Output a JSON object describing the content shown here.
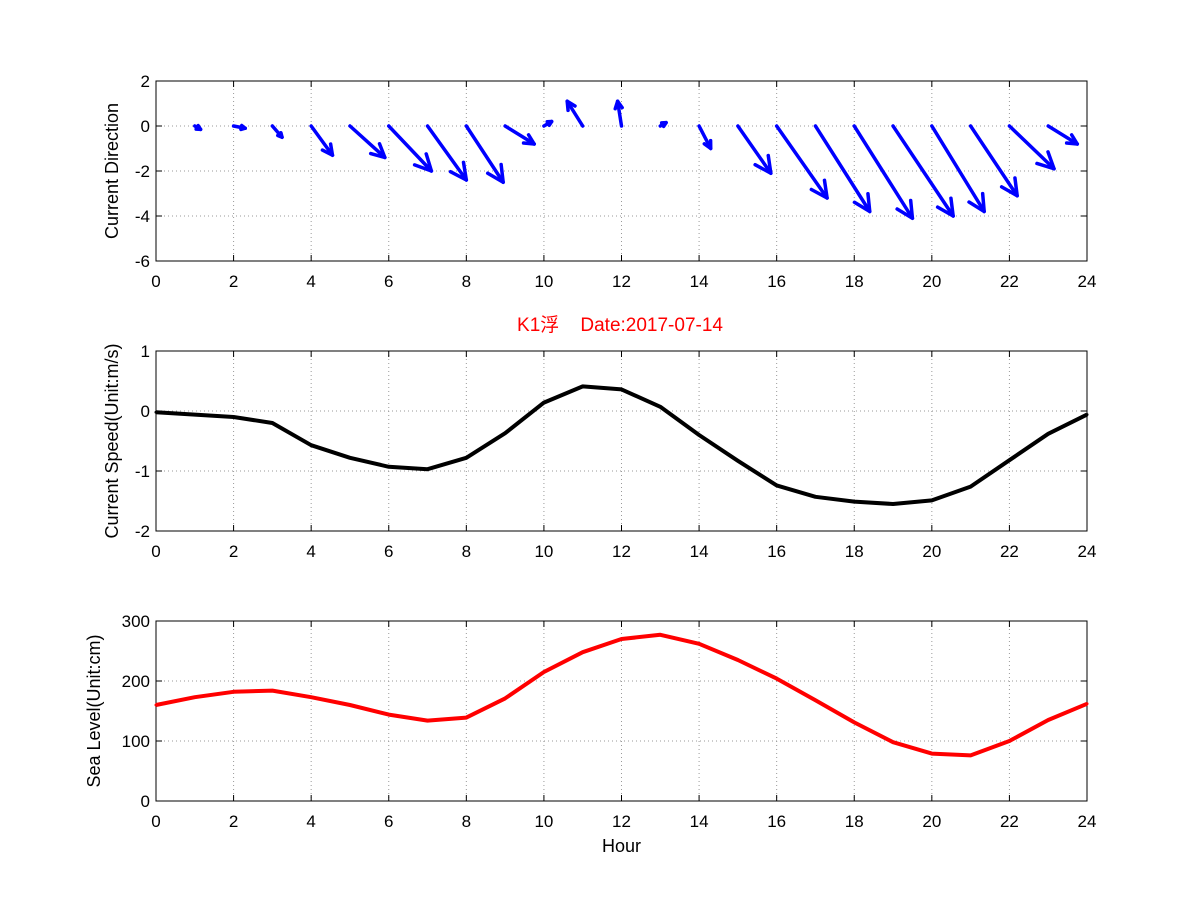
{
  "title": "K1浮    Date:2017-07-14",
  "colors": {
    "arrows": "#0000ff",
    "speed": "#000000",
    "sea_level": "#ff0000",
    "title": "#ff0000"
  },
  "chart_data": [
    {
      "type": "quiver",
      "ylabel": "Current Direction",
      "xlim": [
        0,
        24
      ],
      "ylim": [
        -6,
        2
      ],
      "xticks": [
        0,
        2,
        4,
        6,
        8,
        10,
        12,
        14,
        16,
        18,
        20,
        22,
        24
      ],
      "yticks": [
        2,
        0,
        -2,
        -4,
        -6
      ],
      "grid": true,
      "arrows": [
        {
          "x": 1,
          "u": 0.15,
          "v": -0.15
        },
        {
          "x": 2,
          "u": 0.3,
          "v": -0.1
        },
        {
          "x": 3,
          "u": 0.25,
          "v": -0.5
        },
        {
          "x": 4,
          "u": 0.55,
          "v": -1.3
        },
        {
          "x": 5,
          "u": 0.9,
          "v": -1.4
        },
        {
          "x": 6,
          "u": 1.1,
          "v": -2.0
        },
        {
          "x": 7,
          "u": 1.0,
          "v": -2.4
        },
        {
          "x": 8,
          "u": 0.95,
          "v": -2.5
        },
        {
          "x": 9,
          "u": 0.75,
          "v": -0.8
        },
        {
          "x": 10,
          "u": 0.2,
          "v": 0.2
        },
        {
          "x": 11,
          "u": -0.4,
          "v": 1.1
        },
        {
          "x": 12,
          "u": -0.1,
          "v": 1.1
        },
        {
          "x": 13,
          "u": 0.15,
          "v": 0.15
        },
        {
          "x": 14,
          "u": 0.3,
          "v": -1.0
        },
        {
          "x": 15,
          "u": 0.85,
          "v": -2.1
        },
        {
          "x": 16,
          "u": 1.3,
          "v": -3.2
        },
        {
          "x": 17,
          "u": 1.4,
          "v": -3.8
        },
        {
          "x": 18,
          "u": 1.5,
          "v": -4.1
        },
        {
          "x": 19,
          "u": 1.55,
          "v": -4.0
        },
        {
          "x": 20,
          "u": 1.35,
          "v": -3.8
        },
        {
          "x": 21,
          "u": 1.2,
          "v": -3.1
        },
        {
          "x": 22,
          "u": 1.15,
          "v": -1.9
        },
        {
          "x": 23,
          "u": 0.75,
          "v": -0.8
        }
      ]
    },
    {
      "type": "line",
      "ylabel": "Current Speed(Unit:m/s)",
      "xlim": [
        0,
        24
      ],
      "ylim": [
        -2,
        1
      ],
      "xticks": [
        0,
        2,
        4,
        6,
        8,
        10,
        12,
        14,
        16,
        18,
        20,
        22,
        24
      ],
      "yticks": [
        1,
        0,
        -1,
        -2
      ],
      "grid": true,
      "x": [
        0,
        1,
        2,
        3,
        4,
        5,
        6,
        7,
        8,
        9,
        10,
        11,
        12,
        13,
        14,
        15,
        16,
        17,
        18,
        19,
        20,
        21,
        22,
        23,
        24
      ],
      "y": [
        -0.02,
        -0.06,
        -0.1,
        -0.2,
        -0.57,
        -0.78,
        -0.93,
        -0.97,
        -0.78,
        -0.37,
        0.14,
        0.41,
        0.36,
        0.07,
        -0.4,
        -0.83,
        -1.24,
        -1.43,
        -1.51,
        -1.55,
        -1.49,
        -1.26,
        -0.82,
        -0.38,
        -0.06
      ]
    },
    {
      "type": "line",
      "ylabel": "Sea Level(Unit:cm)",
      "xlabel": "Hour",
      "xlim": [
        0,
        24
      ],
      "ylim": [
        0,
        300
      ],
      "xticks": [
        0,
        2,
        4,
        6,
        8,
        10,
        12,
        14,
        16,
        18,
        20,
        22,
        24
      ],
      "yticks": [
        300,
        200,
        100,
        0
      ],
      "grid": true,
      "x": [
        0,
        1,
        2,
        3,
        4,
        5,
        6,
        7,
        8,
        9,
        10,
        11,
        12,
        13,
        14,
        15,
        16,
        17,
        18,
        19,
        20,
        21,
        22,
        23,
        24
      ],
      "y": [
        160,
        173,
        182,
        184,
        173,
        160,
        144,
        134,
        139,
        171,
        215,
        248,
        270,
        277,
        262,
        235,
        204,
        168,
        131,
        98,
        79,
        76,
        100,
        135,
        162
      ]
    }
  ]
}
